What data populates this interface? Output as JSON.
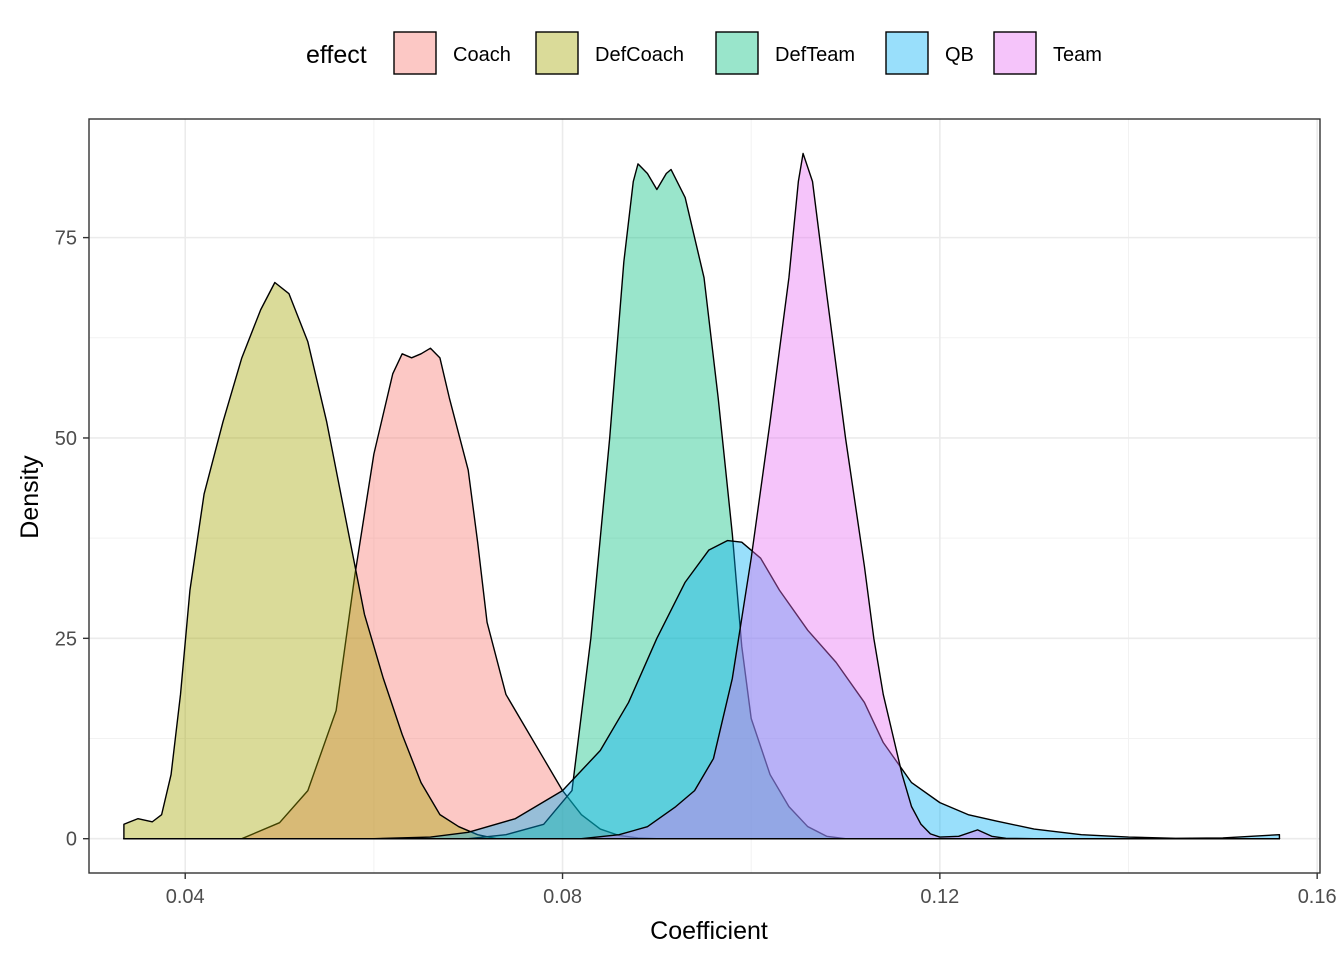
{
  "chart_data": {
    "type": "area",
    "title": "",
    "xlabel": "Coefficient",
    "ylabel": "Density",
    "xlim": [
      0.0298,
      0.1603
    ],
    "ylim": [
      -4.28,
      89.8
    ],
    "x_ticks": [
      0.04,
      0.08,
      0.12,
      0.16
    ],
    "x_tick_labels": [
      "0.04",
      "0.08",
      "0.12",
      "0.16"
    ],
    "y_ticks": [
      0,
      25,
      50,
      75
    ],
    "y_tick_labels": [
      "0",
      "25",
      "50",
      "75"
    ],
    "grid": true,
    "legend": {
      "title": "effect",
      "position": "top"
    },
    "series": [
      {
        "name": "Coach",
        "color": "#F8766D",
        "points": [
          [
            0.0335,
            0
          ],
          [
            0.046,
            0
          ],
          [
            0.05,
            2
          ],
          [
            0.053,
            6
          ],
          [
            0.056,
            16
          ],
          [
            0.058,
            33
          ],
          [
            0.06,
            48
          ],
          [
            0.062,
            58
          ],
          [
            0.063,
            60.5
          ],
          [
            0.064,
            60
          ],
          [
            0.065,
            60.5
          ],
          [
            0.066,
            61.2
          ],
          [
            0.067,
            60
          ],
          [
            0.068,
            55
          ],
          [
            0.07,
            46
          ],
          [
            0.071,
            37
          ],
          [
            0.072,
            27
          ],
          [
            0.074,
            18
          ],
          [
            0.076,
            14
          ],
          [
            0.078,
            10
          ],
          [
            0.08,
            6
          ],
          [
            0.082,
            3
          ],
          [
            0.084,
            1.2
          ],
          [
            0.086,
            0.4
          ],
          [
            0.088,
            0.1
          ],
          [
            0.09,
            0
          ],
          [
            0.156,
            0
          ]
        ]
      },
      {
        "name": "DefCoach",
        "color": "#A3A500",
        "points": [
          [
            0.0335,
            1.8
          ],
          [
            0.035,
            2.5
          ],
          [
            0.0365,
            2.1
          ],
          [
            0.0375,
            3
          ],
          [
            0.0385,
            8
          ],
          [
            0.0395,
            18
          ],
          [
            0.0405,
            31
          ],
          [
            0.042,
            43
          ],
          [
            0.044,
            52
          ],
          [
            0.046,
            60
          ],
          [
            0.048,
            66
          ],
          [
            0.0495,
            69.4
          ],
          [
            0.051,
            68
          ],
          [
            0.053,
            62
          ],
          [
            0.055,
            52
          ],
          [
            0.057,
            40
          ],
          [
            0.059,
            28
          ],
          [
            0.061,
            20
          ],
          [
            0.063,
            13
          ],
          [
            0.065,
            7
          ],
          [
            0.067,
            3
          ],
          [
            0.069,
            1.5
          ],
          [
            0.071,
            0.5
          ],
          [
            0.073,
            0
          ],
          [
            0.156,
            0
          ]
        ]
      },
      {
        "name": "DefTeam",
        "color": "#00BF7D",
        "points": [
          [
            0.0335,
            0
          ],
          [
            0.07,
            0
          ],
          [
            0.074,
            0.5
          ],
          [
            0.078,
            1.8
          ],
          [
            0.081,
            6
          ],
          [
            0.083,
            25
          ],
          [
            0.085,
            50
          ],
          [
            0.0865,
            72
          ],
          [
            0.0875,
            82
          ],
          [
            0.088,
            84.2
          ],
          [
            0.089,
            83
          ],
          [
            0.09,
            81
          ],
          [
            0.091,
            83
          ],
          [
            0.0915,
            83.5
          ],
          [
            0.093,
            80
          ],
          [
            0.095,
            70
          ],
          [
            0.0965,
            55
          ],
          [
            0.098,
            38
          ],
          [
            0.099,
            24
          ],
          [
            0.1,
            15
          ],
          [
            0.102,
            8
          ],
          [
            0.104,
            4
          ],
          [
            0.106,
            1.5
          ],
          [
            0.108,
            0.3
          ],
          [
            0.11,
            0
          ],
          [
            0.156,
            0
          ]
        ]
      },
      {
        "name": "QB",
        "color": "#00B0F6",
        "points": [
          [
            0.0335,
            0
          ],
          [
            0.06,
            0
          ],
          [
            0.066,
            0.2
          ],
          [
            0.07,
            0.8
          ],
          [
            0.075,
            2.5
          ],
          [
            0.08,
            6
          ],
          [
            0.084,
            11
          ],
          [
            0.087,
            17
          ],
          [
            0.09,
            25
          ],
          [
            0.093,
            32
          ],
          [
            0.0955,
            36
          ],
          [
            0.0975,
            37.2
          ],
          [
            0.099,
            37
          ],
          [
            0.101,
            35
          ],
          [
            0.103,
            31
          ],
          [
            0.106,
            26
          ],
          [
            0.109,
            22
          ],
          [
            0.112,
            17
          ],
          [
            0.114,
            12
          ],
          [
            0.117,
            7
          ],
          [
            0.12,
            4.5
          ],
          [
            0.123,
            3
          ],
          [
            0.126,
            2.2
          ],
          [
            0.13,
            1.2
          ],
          [
            0.135,
            0.5
          ],
          [
            0.14,
            0.2
          ],
          [
            0.145,
            0.05
          ],
          [
            0.15,
            0.1
          ],
          [
            0.153,
            0.3
          ],
          [
            0.156,
            0.5
          ],
          [
            0.156,
            0
          ]
        ]
      },
      {
        "name": "Team",
        "color": "#E76BF3",
        "points": [
          [
            0.0335,
            0
          ],
          [
            0.082,
            0
          ],
          [
            0.086,
            0.5
          ],
          [
            0.089,
            1.5
          ],
          [
            0.092,
            4
          ],
          [
            0.094,
            6
          ],
          [
            0.096,
            10
          ],
          [
            0.098,
            20
          ],
          [
            0.1,
            35
          ],
          [
            0.102,
            52
          ],
          [
            0.104,
            70
          ],
          [
            0.105,
            82
          ],
          [
            0.1055,
            85.5
          ],
          [
            0.1065,
            82
          ],
          [
            0.108,
            68
          ],
          [
            0.11,
            50
          ],
          [
            0.112,
            34
          ],
          [
            0.113,
            25
          ],
          [
            0.114,
            18
          ],
          [
            0.115,
            13
          ],
          [
            0.116,
            8
          ],
          [
            0.117,
            4
          ],
          [
            0.118,
            1.8
          ],
          [
            0.119,
            0.6
          ],
          [
            0.12,
            0.2
          ],
          [
            0.122,
            0.3
          ],
          [
            0.124,
            1.1
          ],
          [
            0.1255,
            0.3
          ],
          [
            0.127,
            0.05
          ],
          [
            0.13,
            0
          ],
          [
            0.156,
            0
          ]
        ]
      }
    ]
  }
}
